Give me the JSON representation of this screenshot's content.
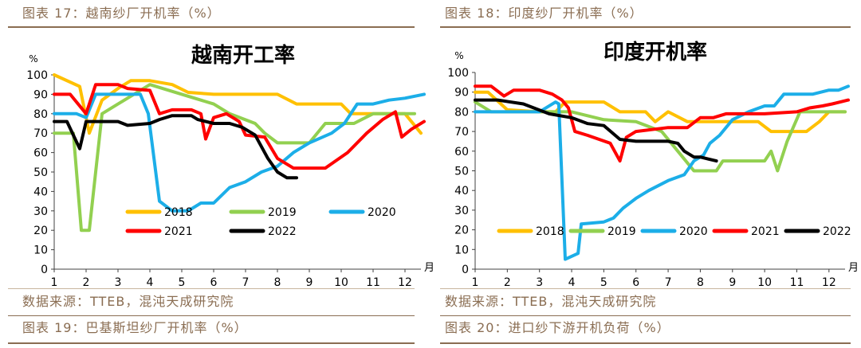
{
  "captions": {
    "top_left": "图表 17：越南纱厂开机率（%）",
    "top_right": "图表 18：印度纱厂开机率（%）",
    "source_left": "数据来源：TTEB，混沌天成研究院",
    "source_right": "数据来源：TTEB，混沌天成研究院",
    "bottom_left": "图表 19：巴基斯坦纱厂开机率（%）",
    "bottom_right": "图表 20：进口纱下游开机负荷（%）"
  },
  "colors": {
    "caption": "#8a6d52",
    "axis": "#404040"
  },
  "chart_data": [
    {
      "type": "line",
      "title": "越南开工率",
      "ylabel": "%",
      "xlabel": "月",
      "ylim": [
        0,
        100
      ],
      "xlim": [
        1,
        12.5
      ],
      "yticks": [
        "0",
        "10",
        "20",
        "30",
        "40",
        "50",
        "60",
        "70",
        "80",
        "90",
        "100"
      ],
      "xticks": [
        "1",
        "2",
        "3",
        "4",
        "5",
        "6",
        "7",
        "8",
        "9",
        "10",
        "11",
        "12"
      ],
      "grid": false,
      "legend_position": "bottom-center",
      "series": [
        {
          "name": "2018",
          "color": "#FFC000",
          "points": [
            [
              1,
              100
            ],
            [
              1.8,
              94
            ],
            [
              2.1,
              70
            ],
            [
              2.5,
              87
            ],
            [
              3,
              93
            ],
            [
              3.4,
              97
            ],
            [
              4,
              97
            ],
            [
              4.7,
              95
            ],
            [
              5.2,
              91
            ],
            [
              6,
              90
            ],
            [
              6.5,
              90
            ],
            [
              7.5,
              90
            ],
            [
              8,
              90
            ],
            [
              8.6,
              85
            ],
            [
              9.3,
              85
            ],
            [
              10,
              85
            ],
            [
              10.3,
              80
            ],
            [
              12,
              80
            ],
            [
              12.5,
              70
            ]
          ]
        },
        {
          "name": "2019",
          "color": "#92D050",
          "points": [
            [
              1,
              70
            ],
            [
              1.6,
              70
            ],
            [
              1.85,
              20
            ],
            [
              2.1,
              20
            ],
            [
              2.5,
              80
            ],
            [
              3,
              85
            ],
            [
              3.5,
              90
            ],
            [
              4,
              95
            ],
            [
              5,
              90
            ],
            [
              6,
              85
            ],
            [
              6.5,
              80
            ],
            [
              7.3,
              75
            ],
            [
              7.6,
              70
            ],
            [
              8,
              65
            ],
            [
              9,
              65
            ],
            [
              9.5,
              75
            ],
            [
              10.4,
              75
            ],
            [
              11,
              80
            ],
            [
              12.3,
              80
            ]
          ]
        },
        {
          "name": "2020",
          "color": "#1CAEE8",
          "points": [
            [
              1,
              80
            ],
            [
              1.7,
              80
            ],
            [
              2,
              78
            ],
            [
              2.3,
              90
            ],
            [
              3,
              90
            ],
            [
              3.7,
              90
            ],
            [
              3.95,
              80
            ],
            [
              4.3,
              35
            ],
            [
              4.7,
              30
            ],
            [
              5.2,
              30
            ],
            [
              5.6,
              34
            ],
            [
              6,
              34
            ],
            [
              6.5,
              42
            ],
            [
              7,
              45
            ],
            [
              7.5,
              50
            ],
            [
              8,
              53
            ],
            [
              8.5,
              60
            ],
            [
              9,
              65
            ],
            [
              9.7,
              70
            ],
            [
              10.1,
              75
            ],
            [
              10.5,
              85
            ],
            [
              11,
              85
            ],
            [
              11.5,
              87
            ],
            [
              12,
              88
            ],
            [
              12.6,
              90
            ]
          ]
        },
        {
          "name": "2021",
          "color": "#FF0000",
          "points": [
            [
              1,
              90
            ],
            [
              1.5,
              90
            ],
            [
              2,
              80
            ],
            [
              2.3,
              95
            ],
            [
              3,
              95
            ],
            [
              3.3,
              93
            ],
            [
              4,
              92
            ],
            [
              4.3,
              80
            ],
            [
              4.7,
              82
            ],
            [
              5.3,
              82
            ],
            [
              5.6,
              80
            ],
            [
              5.75,
              67
            ],
            [
              6,
              78
            ],
            [
              6.4,
              80
            ],
            [
              6.8,
              76
            ],
            [
              7,
              69
            ],
            [
              7.6,
              68
            ],
            [
              8,
              57
            ],
            [
              8.5,
              52
            ],
            [
              9.5,
              52
            ],
            [
              10.2,
              60
            ],
            [
              10.8,
              70
            ],
            [
              11.3,
              77
            ],
            [
              11.7,
              81
            ],
            [
              11.9,
              68
            ],
            [
              12.2,
              72
            ],
            [
              12.6,
              76
            ]
          ]
        },
        {
          "name": "2022",
          "color": "#000000",
          "points": [
            [
              1,
              76
            ],
            [
              1.4,
              76
            ],
            [
              1.8,
              62
            ],
            [
              2,
              76
            ],
            [
              3,
              76
            ],
            [
              3.3,
              74
            ],
            [
              4,
              75
            ],
            [
              4.3,
              77
            ],
            [
              4.7,
              79
            ],
            [
              5.3,
              79
            ],
            [
              5.5,
              77
            ],
            [
              6,
              75
            ],
            [
              6.5,
              75
            ],
            [
              6.9,
              73
            ],
            [
              7.3,
              69
            ],
            [
              7.7,
              57
            ],
            [
              8,
              50
            ],
            [
              8.3,
              47
            ],
            [
              8.6,
              47
            ]
          ]
        }
      ]
    },
    {
      "type": "line",
      "title": "印度开机率",
      "ylabel": "%",
      "xlabel": "月",
      "ylim": [
        0,
        100
      ],
      "xlim": [
        1,
        12.5
      ],
      "yticks": [
        "0",
        "10",
        "20",
        "30",
        "40",
        "50",
        "60",
        "70",
        "80",
        "90",
        "100"
      ],
      "xticks": [
        "1",
        "2",
        "3",
        "4",
        "5",
        "6",
        "7",
        "8",
        "9",
        "10",
        "11",
        "12"
      ],
      "grid": false,
      "legend_position": "bottom",
      "series": [
        {
          "name": "2018",
          "color": "#FFC000",
          "points": [
            [
              1,
              90
            ],
            [
              1.4,
              90
            ],
            [
              2,
              81
            ],
            [
              3,
              80
            ],
            [
              3.5,
              80
            ],
            [
              3.8,
              85
            ],
            [
              5,
              85
            ],
            [
              5.5,
              80
            ],
            [
              6.3,
              80
            ],
            [
              6.6,
              75
            ],
            [
              7,
              80
            ],
            [
              7.6,
              75
            ],
            [
              8.7,
              75
            ],
            [
              9.2,
              75
            ],
            [
              9.8,
              75
            ],
            [
              10.2,
              70
            ],
            [
              11.3,
              70
            ],
            [
              11.7,
              75
            ],
            [
              12,
              80
            ],
            [
              12.5,
              80
            ]
          ]
        },
        {
          "name": "2019",
          "color": "#92D050",
          "points": [
            [
              1,
              85
            ],
            [
              1.5,
              80
            ],
            [
              2,
              80
            ],
            [
              3,
              80
            ],
            [
              3.5,
              80
            ],
            [
              4,
              80
            ],
            [
              5,
              76
            ],
            [
              6,
              75
            ],
            [
              6.8,
              70
            ],
            [
              7.3,
              60
            ],
            [
              7.8,
              50
            ],
            [
              8.5,
              50
            ],
            [
              8.7,
              55
            ],
            [
              9,
              55
            ],
            [
              10,
              55
            ],
            [
              10.2,
              60
            ],
            [
              10.4,
              50
            ],
            [
              10.7,
              65
            ],
            [
              11.1,
              80
            ],
            [
              12.5,
              80
            ]
          ]
        },
        {
          "name": "2020",
          "color": "#1CAEE8",
          "points": [
            [
              1,
              80
            ],
            [
              2,
              80
            ],
            [
              3,
              80
            ],
            [
              3.5,
              85
            ],
            [
              3.6,
              84
            ],
            [
              3.8,
              5
            ],
            [
              4.2,
              8
            ],
            [
              4.3,
              23
            ],
            [
              5,
              24
            ],
            [
              5.3,
              26
            ],
            [
              5.6,
              31
            ],
            [
              6,
              36
            ],
            [
              6.4,
              40
            ],
            [
              7,
              45
            ],
            [
              7.5,
              48
            ],
            [
              7.8,
              55
            ],
            [
              8.1,
              58
            ],
            [
              8.3,
              64
            ],
            [
              8.6,
              68
            ],
            [
              9,
              76
            ],
            [
              9.5,
              80
            ],
            [
              10,
              83
            ],
            [
              10.3,
              83
            ],
            [
              10.6,
              89
            ],
            [
              11,
              89
            ],
            [
              11.5,
              89
            ],
            [
              12,
              91
            ],
            [
              12.3,
              91
            ],
            [
              12.6,
              93
            ]
          ]
        },
        {
          "name": "2021",
          "color": "#FF0000",
          "points": [
            [
              1,
              93
            ],
            [
              1.5,
              93
            ],
            [
              1.9,
              88
            ],
            [
              2.2,
              91
            ],
            [
              3,
              91
            ],
            [
              3.4,
              89
            ],
            [
              3.7,
              86
            ],
            [
              3.9,
              82
            ],
            [
              4.1,
              70
            ],
            [
              4.5,
              68
            ],
            [
              5.2,
              64
            ],
            [
              5.5,
              55
            ],
            [
              5.7,
              67
            ],
            [
              6,
              70
            ],
            [
              7,
              72
            ],
            [
              7.6,
              72
            ],
            [
              8,
              77
            ],
            [
              8.4,
              77
            ],
            [
              8.8,
              79
            ],
            [
              9,
              79
            ],
            [
              10,
              79
            ],
            [
              11,
              80
            ],
            [
              11.4,
              82
            ],
            [
              11.8,
              83
            ],
            [
              12.1,
              84
            ],
            [
              12.6,
              86
            ]
          ]
        },
        {
          "name": "2022",
          "color": "#000000",
          "points": [
            [
              1,
              86
            ],
            [
              1.7,
              86
            ],
            [
              2.5,
              84
            ],
            [
              3.3,
              79
            ],
            [
              4,
              77
            ],
            [
              4.5,
              74
            ],
            [
              5,
              73
            ],
            [
              5.5,
              66
            ],
            [
              6,
              65
            ],
            [
              7,
              65
            ],
            [
              7.3,
              64
            ],
            [
              7.5,
              60
            ],
            [
              7.8,
              57
            ],
            [
              8,
              57
            ],
            [
              8.5,
              55
            ]
          ]
        }
      ]
    }
  ]
}
